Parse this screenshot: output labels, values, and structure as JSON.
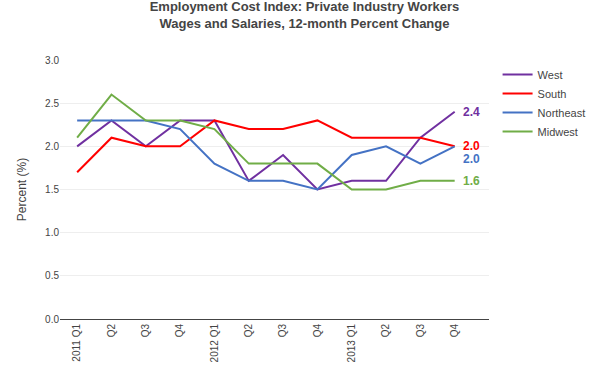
{
  "chart_data": {
    "type": "line",
    "title": "Employment Cost Index: Private Industry Workers\nWages and Salaries, 12-month Percent Change",
    "y_label": "Percent (%)",
    "categories": [
      "2011 Q1",
      "Q2",
      "Q3",
      "Q4",
      "2012 Q1",
      "Q2",
      "Q3",
      "Q4",
      "2013 Q1",
      "Q2",
      "Q3",
      "Q4"
    ],
    "series": [
      {
        "name": "West",
        "color": "#7030A0",
        "values": [
          2.0,
          2.3,
          2.0,
          2.3,
          2.3,
          1.6,
          1.9,
          1.5,
          1.6,
          1.6,
          2.1,
          2.4
        ],
        "value_labels": [
          null,
          null,
          null,
          null,
          null,
          null,
          null,
          null,
          null,
          null,
          null,
          "2.4"
        ]
      },
      {
        "name": "South",
        "color": "#FF0000",
        "values": [
          1.7,
          2.1,
          2.0,
          2.0,
          2.3,
          2.2,
          2.2,
          2.3,
          2.1,
          2.1,
          2.1,
          2.0
        ],
        "value_labels": [
          null,
          null,
          null,
          null,
          null,
          null,
          null,
          null,
          null,
          null,
          null,
          "2.0"
        ]
      },
      {
        "name": "Northeast",
        "color": "#4472C4",
        "values": [
          2.3,
          2.3,
          2.3,
          2.2,
          1.8,
          1.6,
          1.6,
          1.5,
          1.9,
          2.0,
          1.8,
          2.0
        ],
        "value_labels": [
          null,
          null,
          null,
          null,
          null,
          null,
          null,
          null,
          null,
          null,
          null,
          "2.0"
        ]
      },
      {
        "name": "Midwest",
        "color": "#70AD47",
        "values": [
          2.1,
          2.6,
          2.3,
          2.3,
          2.2,
          1.8,
          1.8,
          1.8,
          1.5,
          1.5,
          1.6,
          1.6
        ],
        "value_labels": [
          null,
          null,
          null,
          null,
          null,
          null,
          null,
          null,
          null,
          null,
          null,
          "1.6"
        ]
      }
    ],
    "ylim": [
      0.0,
      3.0
    ],
    "yticks": [
      {
        "value": 0,
        "label": "0.0"
      },
      0.5,
      {
        "value": 1,
        "label": "1.0"
      },
      1.5,
      {
        "value": 2,
        "label": "2.0"
      },
      2.5,
      {
        "value": 3,
        "label": "3.0"
      }
    ],
    "grid": true,
    "legend": "upper right"
  }
}
